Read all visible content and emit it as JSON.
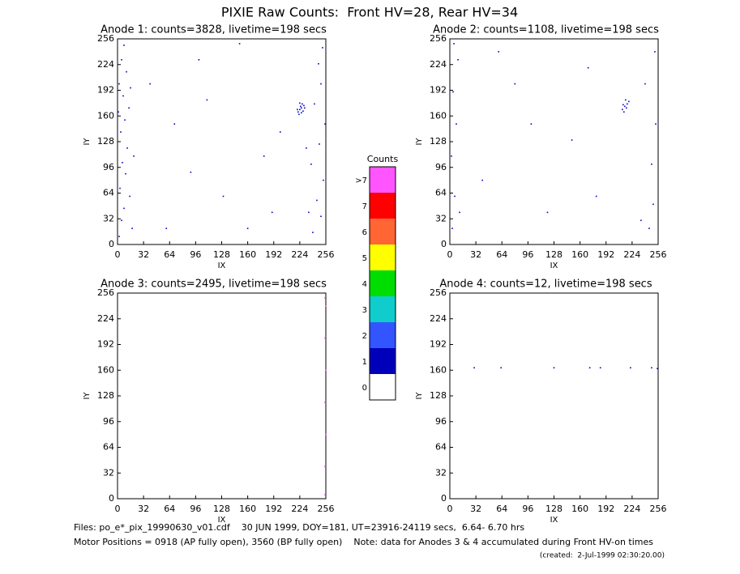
{
  "title": "PIXIE Raw Counts:  Front HV=28, Rear HV=34",
  "chart_data": [
    {
      "type": "scatter",
      "title": "Anode 1: counts=3828, livetime=198 secs",
      "x_label": "IX",
      "y_label": "IY",
      "xlim": [
        0,
        256
      ],
      "ylim": [
        0,
        256
      ],
      "xticks": [
        0,
        32,
        64,
        96,
        128,
        160,
        192,
        224,
        256
      ],
      "yticks": [
        0,
        32,
        64,
        96,
        128,
        160,
        192,
        224,
        256
      ],
      "series": [
        {
          "color": "#0000cc",
          "x": [
            2,
            5,
            8,
            3,
            10,
            6,
            12,
            4,
            9,
            14,
            7,
            2,
            11,
            5,
            8,
            15,
            18,
            20,
            16,
            1,
            240,
            250,
            245,
            253,
            238,
            248,
            255,
            242,
            250,
            247,
            252,
            235,
            232,
            222,
            224,
            226,
            228,
            225,
            223,
            227,
            230,
            221,
            226,
            229,
            224,
            40,
            70,
            100,
            130,
            160,
            180,
            60,
            110,
            200,
            150,
            90,
            190
          ],
          "y": [
            10,
            30,
            45,
            70,
            88,
            102,
            120,
            140,
            155,
            170,
            185,
            200,
            215,
            230,
            248,
            60,
            20,
            110,
            195,
            165,
            15,
            35,
            55,
            80,
            100,
            125,
            150,
            175,
            200,
            225,
            245,
            40,
            120,
            165,
            168,
            170,
            166,
            172,
            162,
            175,
            170,
            168,
            164,
            173,
            176,
            200,
            150,
            230,
            60,
            20,
            110,
            20,
            180,
            140,
            250,
            90,
            40
          ]
        }
      ]
    },
    {
      "type": "scatter",
      "title": "Anode 2: counts=1108, livetime=198 secs",
      "x_label": "IX",
      "y_label": "IY",
      "xlim": [
        0,
        256
      ],
      "ylim": [
        0,
        256
      ],
      "xticks": [
        0,
        32,
        64,
        96,
        128,
        160,
        192,
        224,
        256
      ],
      "yticks": [
        0,
        32,
        64,
        96,
        128,
        160,
        192,
        224,
        256
      ],
      "series": [
        {
          "color": "#0000cc",
          "x": [
            3,
            6,
            2,
            8,
            4,
            10,
            12,
            5,
            245,
            250,
            248,
            253,
            240,
            252,
            235,
            212,
            215,
            218,
            214,
            217,
            220,
            213,
            216,
            40,
            80,
            120,
            150,
            180,
            100,
            60,
            170
          ],
          "y": [
            20,
            60,
            110,
            150,
            190,
            230,
            40,
            250,
            20,
            50,
            100,
            150,
            200,
            240,
            30,
            168,
            172,
            175,
            165,
            170,
            178,
            174,
            180,
            80,
            200,
            40,
            130,
            60,
            150,
            240,
            220
          ]
        }
      ]
    },
    {
      "type": "scatter",
      "title": "Anode 3: counts=2495, livetime=198 secs",
      "x_label": "IX",
      "y_label": "IY",
      "xlim": [
        0,
        256
      ],
      "ylim": [
        0,
        256
      ],
      "xticks": [
        0,
        32,
        64,
        96,
        128,
        160,
        192,
        224,
        256
      ],
      "yticks": [
        0,
        32,
        64,
        96,
        128,
        160,
        192,
        224,
        256
      ],
      "series": [
        {
          "color": "#ff44ff",
          "x": [
            255,
            255,
            256,
            255,
            256,
            255,
            256,
            255
          ],
          "y": [
            5,
            40,
            80,
            120,
            160,
            200,
            240,
            250
          ]
        }
      ]
    },
    {
      "type": "scatter",
      "title": "Anode 4: counts=12, livetime=198 secs",
      "x_label": "IX",
      "y_label": "IY",
      "xlim": [
        0,
        256
      ],
      "ylim": [
        0,
        256
      ],
      "xticks": [
        0,
        32,
        64,
        96,
        128,
        160,
        192,
        224,
        256
      ],
      "yticks": [
        0,
        32,
        64,
        96,
        128,
        160,
        192,
        224,
        256
      ],
      "series": [
        {
          "color": "#0000cc",
          "x": [
            30,
            63,
            128,
            172,
            185,
            222,
            248,
            255
          ],
          "y": [
            163,
            163,
            163,
            163,
            163,
            163,
            163,
            162
          ]
        }
      ]
    }
  ],
  "colorbar": {
    "title": "Counts",
    "levels": [
      "0",
      "1",
      "2",
      "3",
      "4",
      "5",
      "6",
      "7",
      ">7"
    ],
    "colors": [
      "#ffffff",
      "#0000bb",
      "#3355ff",
      "#11cccc",
      "#00dd00",
      "#ffff00",
      "#ff6633",
      "#ff0000",
      "#ff55ff"
    ]
  },
  "footer": [
    "Files: po_e*_pix_19990630_v01.cdf    30 JUN 1999, DOY=181, UT=23916-24119 secs,  6.64- 6.70 hrs",
    "Motor Positions = 0918 (AP fully open), 3560 (BP fully open)    Note: data for Anodes 3 & 4 accumulated during Front HV-on times",
    "(created:  2-Jul-1999 02:30:20.00)"
  ]
}
